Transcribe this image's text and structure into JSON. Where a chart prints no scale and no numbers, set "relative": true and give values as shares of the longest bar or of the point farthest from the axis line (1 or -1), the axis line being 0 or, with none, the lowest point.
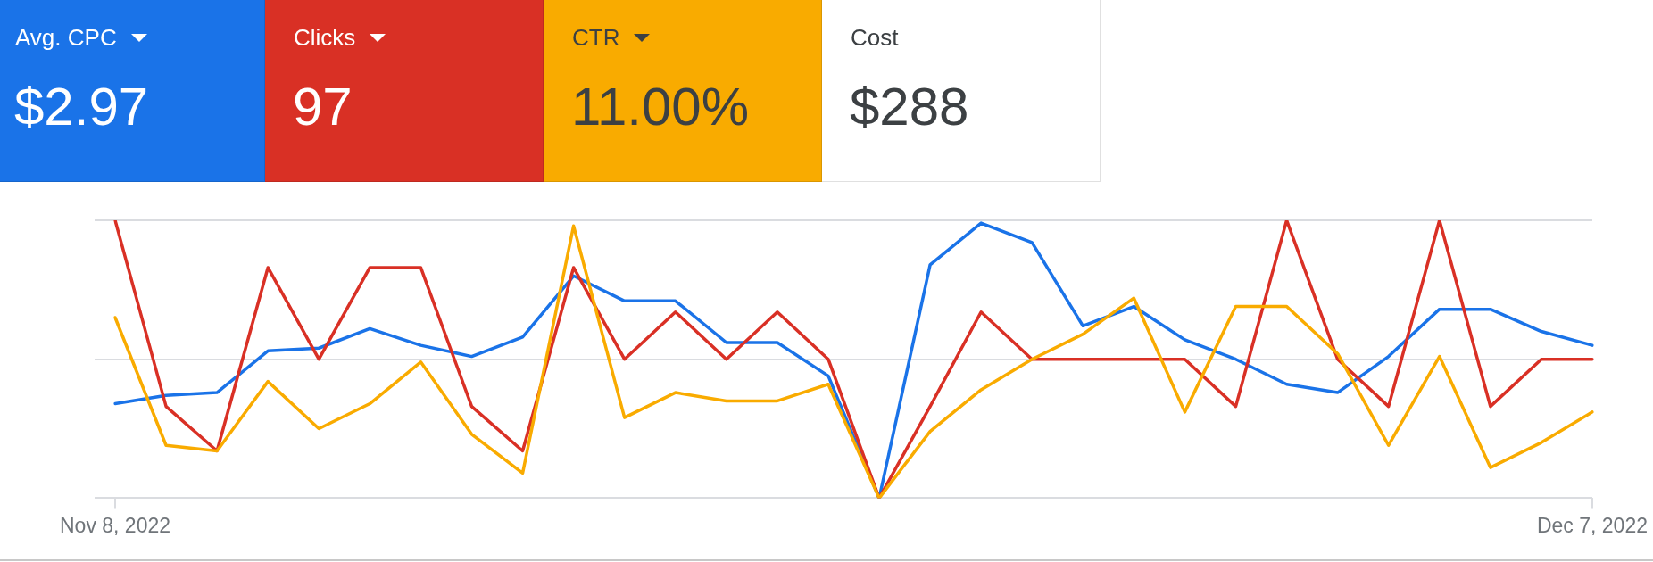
{
  "chart_data": [
    {
      "type": "other",
      "categories": [
        "Avg. CPC",
        "Clicks",
        "CTR",
        "Cost"
      ],
      "values": [
        2.97,
        97,
        11,
        288
      ],
      "value_labels": [
        "$2.97",
        "97",
        "11.00%",
        "$288"
      ],
      "colors": [
        "#1a73e8",
        "#d93025",
        "#f9ab00",
        "#ffffff"
      ]
    },
    {
      "type": "line",
      "relative": true,
      "marker": "none",
      "categories": [
        "Nov 8, 2022",
        null,
        null,
        null,
        null,
        null,
        null,
        null,
        null,
        null,
        null,
        null,
        null,
        null,
        null,
        null,
        null,
        null,
        null,
        null,
        null,
        null,
        null,
        null,
        null,
        null,
        null,
        null,
        null,
        "Dec 7, 2022"
      ],
      "ref_lines": [
        {
          "axis": "y",
          "value": 0.5,
          "color": "#dadce0"
        }
      ],
      "series": [
        {
          "color": "#1a73e8",
          "values": [
            0.34,
            0.37,
            0.38,
            0.53,
            0.54,
            0.61,
            0.55,
            0.51,
            0.58,
            0.8,
            0.71,
            0.71,
            0.56,
            0.56,
            0.44,
            0,
            0.84,
            0.99,
            0.92,
            0.62,
            0.69,
            0.57,
            0.5,
            0.41,
            0.38,
            0.51,
            0.68,
            0.68,
            0.6,
            0.55
          ]
        },
        {
          "color": "#d93025",
          "values": [
            1,
            0.33,
            0.17,
            0.83,
            0.5,
            0.83,
            0.83,
            0.33,
            0.17,
            0.83,
            0.5,
            0.67,
            0.5,
            0.67,
            0.5,
            0,
            0.33,
            0.67,
            0.5,
            0.5,
            0.5,
            0.5,
            0.33,
            1,
            0.5,
            0.33,
            1,
            0.33,
            0.5,
            0.5
          ]
        },
        {
          "color": "#f9ab00",
          "values": [
            0.65,
            0.19,
            0.17,
            0.42,
            0.25,
            0.34,
            0.49,
            0.23,
            0.09,
            0.98,
            0.29,
            0.38,
            0.35,
            0.35,
            0.41,
            0,
            0.24,
            0.39,
            0.5,
            0.59,
            0.72,
            0.31,
            0.69,
            0.69,
            0.52,
            0.19,
            0.51,
            0.11,
            0.2,
            0.31
          ]
        }
      ]
    }
  ]
}
